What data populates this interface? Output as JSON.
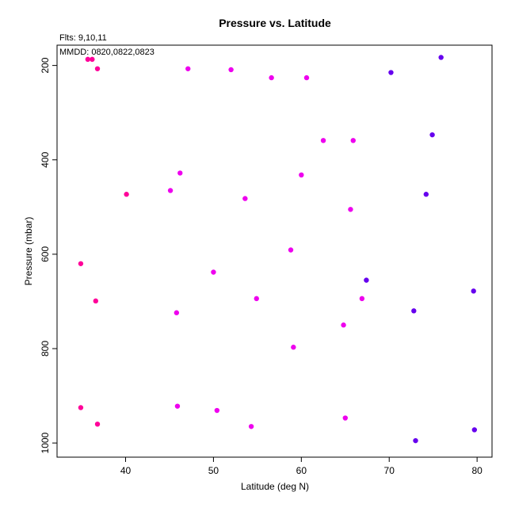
{
  "chart_data": {
    "type": "scatter",
    "title": "Pressure vs. Latitude",
    "xlabel": "Latitude (deg N)",
    "ylabel": "Pressure (mbar)",
    "annotations": [
      "Flts: 9,10,11",
      "MMDD: 0820,0822,0823"
    ],
    "xlim": [
      32.2,
      81.7
    ],
    "ylim": [
      1030,
      157
    ],
    "y_reversed": true,
    "x_ticks": [
      40,
      50,
      60,
      70,
      80
    ],
    "y_ticks": [
      200,
      400,
      600,
      800,
      1000
    ],
    "x_tick_labels": [
      "40",
      "50",
      "60",
      "70",
      "80"
    ],
    "y_tick_labels": [
      "200",
      "400",
      "600",
      "800",
      "1000"
    ],
    "grid": false,
    "point_colors": {
      "pink": "#ff0099",
      "magenta": "#ee00ee",
      "violet": "#6600ee"
    },
    "series": [
      {
        "points": [
          {
            "x": 35.7,
            "y": 187,
            "c": "pink"
          },
          {
            "x": 36.2,
            "y": 187,
            "c": "pink"
          },
          {
            "x": 36.8,
            "y": 207,
            "c": "pink"
          },
          {
            "x": 40.1,
            "y": 473,
            "c": "pink"
          },
          {
            "x": 34.9,
            "y": 620,
            "c": "pink"
          },
          {
            "x": 36.6,
            "y": 699,
            "c": "pink"
          },
          {
            "x": 34.9,
            "y": 925,
            "c": "pink"
          },
          {
            "x": 36.8,
            "y": 960,
            "c": "pink"
          },
          {
            "x": 47.1,
            "y": 207,
            "c": "magenta"
          },
          {
            "x": 52.0,
            "y": 209,
            "c": "magenta"
          },
          {
            "x": 56.6,
            "y": 226,
            "c": "magenta"
          },
          {
            "x": 60.6,
            "y": 226,
            "c": "magenta"
          },
          {
            "x": 62.5,
            "y": 359,
            "c": "magenta"
          },
          {
            "x": 65.9,
            "y": 359,
            "c": "magenta"
          },
          {
            "x": 46.2,
            "y": 428,
            "c": "magenta"
          },
          {
            "x": 60.0,
            "y": 432,
            "c": "magenta"
          },
          {
            "x": 45.1,
            "y": 465,
            "c": "magenta"
          },
          {
            "x": 53.6,
            "y": 482,
            "c": "magenta"
          },
          {
            "x": 65.6,
            "y": 505,
            "c": "magenta"
          },
          {
            "x": 58.8,
            "y": 591,
            "c": "magenta"
          },
          {
            "x": 50.0,
            "y": 638,
            "c": "magenta"
          },
          {
            "x": 54.9,
            "y": 694,
            "c": "magenta"
          },
          {
            "x": 66.9,
            "y": 694,
            "c": "magenta"
          },
          {
            "x": 45.8,
            "y": 724,
            "c": "magenta"
          },
          {
            "x": 64.8,
            "y": 750,
            "c": "magenta"
          },
          {
            "x": 59.1,
            "y": 797,
            "c": "magenta"
          },
          {
            "x": 45.9,
            "y": 922,
            "c": "magenta"
          },
          {
            "x": 50.4,
            "y": 931,
            "c": "magenta"
          },
          {
            "x": 65.0,
            "y": 947,
            "c": "magenta"
          },
          {
            "x": 54.3,
            "y": 965,
            "c": "magenta"
          },
          {
            "x": 75.9,
            "y": 183,
            "c": "violet"
          },
          {
            "x": 70.2,
            "y": 215,
            "c": "violet"
          },
          {
            "x": 74.9,
            "y": 347,
            "c": "violet"
          },
          {
            "x": 74.2,
            "y": 473,
            "c": "violet"
          },
          {
            "x": 67.4,
            "y": 655,
            "c": "violet"
          },
          {
            "x": 79.6,
            "y": 678,
            "c": "violet"
          },
          {
            "x": 72.8,
            "y": 720,
            "c": "violet"
          },
          {
            "x": 73.0,
            "y": 995,
            "c": "violet"
          },
          {
            "x": 79.7,
            "y": 972,
            "c": "violet"
          }
        ]
      }
    ]
  }
}
